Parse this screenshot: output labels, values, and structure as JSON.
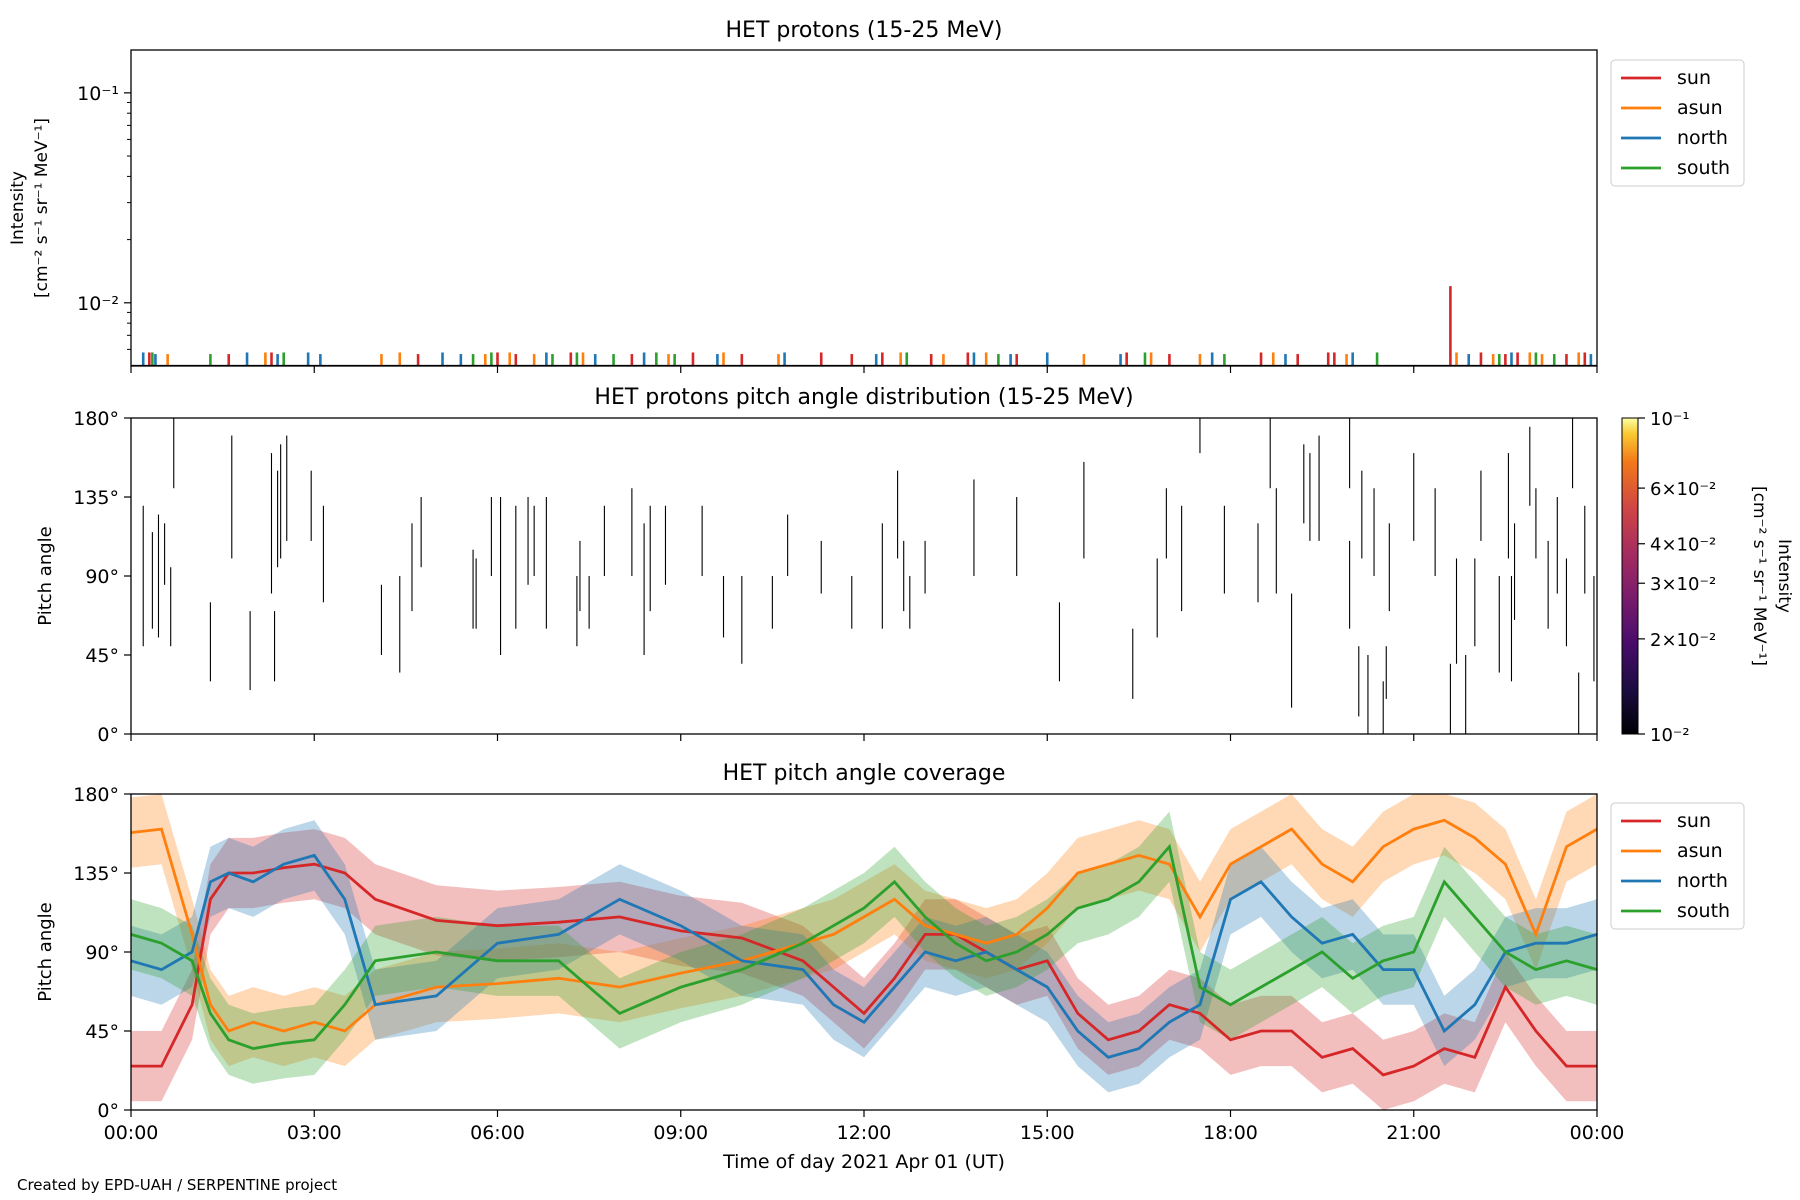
{
  "footer": "Created by EPD-UAH / SERPENTINE project",
  "colors": {
    "sun": "#d62728",
    "asun": "#ff7f0e",
    "north": "#1f77b4",
    "south": "#2ca02c"
  },
  "chart_data": [
    {
      "type": "line",
      "title": "HET protons (15-25 MeV)",
      "ylabel_line1": "Intensity",
      "ylabel_line2": "[cm⁻² s⁻¹ sr⁻¹ MeV⁻¹]",
      "yscale": "log",
      "ylim": [
        0.005,
        0.16
      ],
      "ytick_labels": [
        "10⁻¹",
        "10⁻²"
      ],
      "ytick_values": [
        0.1,
        0.01
      ],
      "x_range_hours": [
        0,
        24
      ],
      "legend_position": "outside-right",
      "series": [
        {
          "name": "sun",
          "color": "#d62728",
          "x": [
            0.3,
            1.6,
            2.3,
            4.7,
            6.0,
            6.3,
            7.2,
            8.2,
            9.2,
            10.0,
            11.3,
            11.8,
            12.3,
            13.1,
            13.7,
            14.5,
            16.3,
            17.0,
            18.5,
            19.1,
            19.6,
            19.7,
            21.6,
            22.1,
            22.5,
            22.7,
            23.5,
            23.8
          ],
          "y": [
            0.0058,
            0.0057,
            0.0058,
            0.0057,
            0.0058,
            0.0057,
            0.0058,
            0.0057,
            0.0058,
            0.0057,
            0.0058,
            0.0057,
            0.0058,
            0.0057,
            0.0058,
            0.0057,
            0.0058,
            0.0057,
            0.0058,
            0.0057,
            0.0058,
            0.0058,
            0.012,
            0.0058,
            0.0057,
            0.0058,
            0.0057,
            0.0058
          ]
        },
        {
          "name": "asun",
          "color": "#ff7f0e",
          "x": [
            0.6,
            2.2,
            4.1,
            4.4,
            5.8,
            6.2,
            6.6,
            7.4,
            8.8,
            9.7,
            10.6,
            12.6,
            13.3,
            14.0,
            15.6,
            16.7,
            17.5,
            18.7,
            19.9,
            21.7,
            22.3,
            22.9,
            23.1,
            23.7
          ],
          "y": [
            0.0057,
            0.0058,
            0.0057,
            0.0058,
            0.0057,
            0.0058,
            0.0057,
            0.0058,
            0.0057,
            0.0058,
            0.0057,
            0.0058,
            0.0057,
            0.0058,
            0.0057,
            0.0058,
            0.0057,
            0.0058,
            0.0057,
            0.0058,
            0.0057,
            0.0058,
            0.0057,
            0.0058
          ]
        },
        {
          "name": "north",
          "color": "#1f77b4",
          "x": [
            0.2,
            0.4,
            1.9,
            2.4,
            2.9,
            3.1,
            5.1,
            5.4,
            6.8,
            7.6,
            8.4,
            9.6,
            10.7,
            12.2,
            13.8,
            14.4,
            15.0,
            16.2,
            17.7,
            18.9,
            20.0,
            21.9,
            22.6,
            23.9
          ],
          "y": [
            0.0058,
            0.0057,
            0.0058,
            0.0057,
            0.0058,
            0.0057,
            0.0058,
            0.0057,
            0.0058,
            0.0057,
            0.0058,
            0.0057,
            0.0058,
            0.0057,
            0.0058,
            0.0057,
            0.0058,
            0.0057,
            0.0058,
            0.0057,
            0.0058,
            0.0057,
            0.0058,
            0.0057
          ]
        },
        {
          "name": "south",
          "color": "#2ca02c",
          "x": [
            0.35,
            1.3,
            2.5,
            5.6,
            5.9,
            6.9,
            7.3,
            7.9,
            8.6,
            8.9,
            12.7,
            14.2,
            16.6,
            17.9,
            20.4,
            22.4,
            23.0,
            23.3
          ],
          "y": [
            0.0058,
            0.0057,
            0.0058,
            0.0057,
            0.0058,
            0.0057,
            0.0058,
            0.0057,
            0.0058,
            0.0057,
            0.0058,
            0.0057,
            0.0058,
            0.0057,
            0.0058,
            0.0057,
            0.0058,
            0.0057
          ]
        }
      ]
    },
    {
      "type": "heatmap",
      "title": "HET protons pitch angle distribution (15-25 MeV)",
      "ylabel": "Pitch angle",
      "ylim": [
        0,
        180
      ],
      "ytick_labels": [
        "0°",
        "45°",
        "90°",
        "135°",
        "180°"
      ],
      "ytick_values": [
        0,
        45,
        90,
        135,
        180
      ],
      "x_range_hours": [
        0,
        24
      ],
      "colorbar": {
        "label_line1": "Intensity",
        "label_line2": "[cm⁻² s⁻¹ sr⁻¹ MeV⁻¹]",
        "scale": "log",
        "range": [
          0.01,
          0.1
        ],
        "tick_labels": [
          "10⁻¹",
          "6×10⁻²",
          "4×10⁻²",
          "3×10⁻²",
          "2×10⁻²",
          "10⁻²"
        ],
        "tick_values": [
          0.1,
          0.06,
          0.04,
          0.03,
          0.02,
          0.01
        ],
        "colormap": "inferno"
      },
      "segments_hours_deg": [
        [
          0.2,
          50,
          130
        ],
        [
          0.35,
          60,
          115
        ],
        [
          0.45,
          55,
          125
        ],
        [
          0.55,
          85,
          120
        ],
        [
          0.65,
          50,
          95
        ],
        [
          0.7,
          140,
          180
        ],
        [
          1.3,
          30,
          75
        ],
        [
          1.65,
          100,
          170
        ],
        [
          1.95,
          25,
          70
        ],
        [
          2.3,
          80,
          160
        ],
        [
          2.35,
          30,
          70
        ],
        [
          2.4,
          95,
          150
        ],
        [
          2.45,
          100,
          165
        ],
        [
          2.55,
          110,
          170
        ],
        [
          2.95,
          110,
          150
        ],
        [
          3.15,
          75,
          130
        ],
        [
          4.1,
          45,
          85
        ],
        [
          4.4,
          35,
          90
        ],
        [
          4.6,
          70,
          120
        ],
        [
          4.75,
          95,
          135
        ],
        [
          5.6,
          60,
          105
        ],
        [
          5.65,
          60,
          100
        ],
        [
          5.9,
          90,
          135
        ],
        [
          6.05,
          45,
          135
        ],
        [
          6.3,
          60,
          130
        ],
        [
          6.5,
          85,
          135
        ],
        [
          6.6,
          90,
          130
        ],
        [
          6.8,
          60,
          135
        ],
        [
          7.3,
          50,
          90
        ],
        [
          7.35,
          70,
          110
        ],
        [
          7.5,
          60,
          90
        ],
        [
          7.75,
          90,
          130
        ],
        [
          8.2,
          90,
          140
        ],
        [
          8.4,
          45,
          120
        ],
        [
          8.5,
          70,
          130
        ],
        [
          8.75,
          85,
          130
        ],
        [
          9.35,
          90,
          130
        ],
        [
          9.7,
          55,
          90
        ],
        [
          10.0,
          40,
          90
        ],
        [
          10.5,
          60,
          90
        ],
        [
          10.75,
          90,
          125
        ],
        [
          11.3,
          80,
          110
        ],
        [
          11.8,
          60,
          90
        ],
        [
          12.3,
          60,
          120
        ],
        [
          12.55,
          100,
          150
        ],
        [
          12.65,
          70,
          110
        ],
        [
          12.75,
          60,
          90
        ],
        [
          13.0,
          80,
          110
        ],
        [
          13.8,
          90,
          145
        ],
        [
          14.5,
          90,
          135
        ],
        [
          15.2,
          30,
          75
        ],
        [
          15.6,
          100,
          155
        ],
        [
          16.4,
          20,
          60
        ],
        [
          16.8,
          55,
          100
        ],
        [
          16.95,
          100,
          140
        ],
        [
          17.2,
          70,
          130
        ],
        [
          17.5,
          160,
          180
        ],
        [
          17.9,
          80,
          130
        ],
        [
          18.45,
          75,
          120
        ],
        [
          18.65,
          140,
          180
        ],
        [
          18.75,
          80,
          140
        ],
        [
          19.0,
          15,
          80
        ],
        [
          19.2,
          120,
          165
        ],
        [
          19.3,
          110,
          160
        ],
        [
          19.45,
          110,
          170
        ],
        [
          19.95,
          60,
          110
        ],
        [
          19.95,
          140,
          180
        ],
        [
          20.1,
          10,
          50
        ],
        [
          20.15,
          100,
          150
        ],
        [
          20.25,
          0,
          45
        ],
        [
          20.35,
          90,
          140
        ],
        [
          20.5,
          0,
          30
        ],
        [
          20.55,
          20,
          50
        ],
        [
          20.6,
          70,
          120
        ],
        [
          21.0,
          110,
          160
        ],
        [
          21.35,
          90,
          140
        ],
        [
          21.6,
          0,
          40
        ],
        [
          21.7,
          40,
          100
        ],
        [
          21.85,
          0,
          45
        ],
        [
          22.0,
          50,
          100
        ],
        [
          22.1,
          110,
          150
        ],
        [
          22.4,
          35,
          90
        ],
        [
          22.55,
          100,
          160
        ],
        [
          22.6,
          30,
          90
        ],
        [
          22.65,
          65,
          120
        ],
        [
          22.9,
          130,
          175
        ],
        [
          23.0,
          100,
          140
        ],
        [
          23.2,
          60,
          110
        ],
        [
          23.35,
          80,
          135
        ],
        [
          23.5,
          50,
          100
        ],
        [
          23.6,
          140,
          180
        ],
        [
          23.7,
          0,
          35
        ],
        [
          23.8,
          80,
          130
        ],
        [
          23.95,
          30,
          90
        ]
      ]
    },
    {
      "type": "area",
      "title": "HET pitch angle coverage",
      "ylabel": "Pitch angle",
      "xlabel": "Time of day 2021 Apr 01 (UT)",
      "ylim": [
        0,
        180
      ],
      "ytick_labels": [
        "0°",
        "45°",
        "90°",
        "135°",
        "180°"
      ],
      "ytick_values": [
        0,
        45,
        90,
        135,
        180
      ],
      "xtick_labels": [
        "00:00",
        "03:00",
        "06:00",
        "09:00",
        "12:00",
        "15:00",
        "18:00",
        "21:00",
        "00:00"
      ],
      "xtick_hours": [
        0,
        3,
        6,
        9,
        12,
        15,
        18,
        21,
        24
      ],
      "band_halfwidth_deg": 20,
      "legend_position": "outside-right",
      "series": [
        {
          "name": "sun",
          "color": "#d62728",
          "x": [
            0,
            0.5,
            1.0,
            1.3,
            1.6,
            2.0,
            2.5,
            3.0,
            3.5,
            4.0,
            5.0,
            6.0,
            7.0,
            8.0,
            9.0,
            10.0,
            11.0,
            11.5,
            12.0,
            12.5,
            13.0,
            13.5,
            14.0,
            14.5,
            15.0,
            15.5,
            16.0,
            16.5,
            17.0,
            17.5,
            18.0,
            18.5,
            19.0,
            19.5,
            20.0,
            20.5,
            21.0,
            21.5,
            22.0,
            22.5,
            23.0,
            23.5,
            24.0
          ],
          "y": [
            25,
            25,
            60,
            120,
            135,
            135,
            138,
            140,
            135,
            120,
            108,
            105,
            107,
            110,
            102,
            98,
            85,
            70,
            55,
            75,
            100,
            100,
            90,
            80,
            85,
            55,
            40,
            45,
            60,
            55,
            40,
            45,
            45,
            30,
            35,
            20,
            25,
            35,
            30,
            70,
            45,
            25,
            25
          ]
        },
        {
          "name": "asun",
          "color": "#ff7f0e",
          "x": [
            0,
            0.5,
            1.0,
            1.3,
            1.6,
            2.0,
            2.5,
            3.0,
            3.5,
            4.0,
            5.0,
            6.0,
            7.0,
            8.0,
            9.0,
            10.0,
            11.0,
            11.5,
            12.0,
            12.5,
            13.0,
            13.5,
            14.0,
            14.5,
            15.0,
            15.5,
            16.0,
            16.5,
            17.0,
            17.5,
            18.0,
            18.5,
            19.0,
            19.5,
            20.0,
            20.5,
            21.0,
            21.5,
            22.0,
            22.5,
            23.0,
            23.5,
            24.0
          ],
          "y": [
            158,
            160,
            100,
            60,
            45,
            50,
            45,
            50,
            45,
            60,
            70,
            72,
            75,
            70,
            78,
            85,
            95,
            100,
            110,
            120,
            105,
            100,
            95,
            100,
            115,
            135,
            140,
            145,
            140,
            110,
            140,
            150,
            160,
            140,
            130,
            150,
            160,
            165,
            155,
            140,
            100,
            150,
            160
          ]
        },
        {
          "name": "north",
          "color": "#1f77b4",
          "x": [
            0,
            0.5,
            1.0,
            1.3,
            1.6,
            2.0,
            2.5,
            3.0,
            3.5,
            4.0,
            5.0,
            6.0,
            7.0,
            8.0,
            9.0,
            10.0,
            11.0,
            11.5,
            12.0,
            12.5,
            13.0,
            13.5,
            14.0,
            14.5,
            15.0,
            15.5,
            16.0,
            16.5,
            17.0,
            17.5,
            18.0,
            18.5,
            19.0,
            19.5,
            20.0,
            20.5,
            21.0,
            21.5,
            22.0,
            22.5,
            23.0,
            23.5,
            24.0
          ],
          "y": [
            85,
            80,
            90,
            130,
            135,
            130,
            140,
            145,
            120,
            60,
            65,
            95,
            100,
            120,
            105,
            85,
            80,
            60,
            50,
            70,
            90,
            85,
            90,
            80,
            70,
            45,
            30,
            35,
            50,
            60,
            120,
            130,
            110,
            95,
            100,
            80,
            80,
            45,
            60,
            90,
            95,
            95,
            100
          ]
        },
        {
          "name": "south",
          "color": "#2ca02c",
          "x": [
            0,
            0.5,
            1.0,
            1.3,
            1.6,
            2.0,
            2.5,
            3.0,
            3.5,
            4.0,
            5.0,
            6.0,
            7.0,
            8.0,
            9.0,
            10.0,
            11.0,
            11.5,
            12.0,
            12.5,
            13.0,
            13.5,
            14.0,
            14.5,
            15.0,
            15.5,
            16.0,
            16.5,
            17.0,
            17.5,
            18.0,
            18.5,
            19.0,
            19.5,
            20.0,
            20.5,
            21.0,
            21.5,
            22.0,
            22.5,
            23.0,
            23.5,
            24.0
          ],
          "y": [
            100,
            95,
            85,
            55,
            40,
            35,
            38,
            40,
            60,
            85,
            90,
            85,
            85,
            55,
            70,
            80,
            95,
            105,
            115,
            130,
            110,
            95,
            85,
            90,
            100,
            115,
            120,
            130,
            150,
            70,
            60,
            70,
            80,
            90,
            75,
            85,
            90,
            130,
            110,
            90,
            80,
            85,
            80
          ]
        }
      ]
    }
  ]
}
